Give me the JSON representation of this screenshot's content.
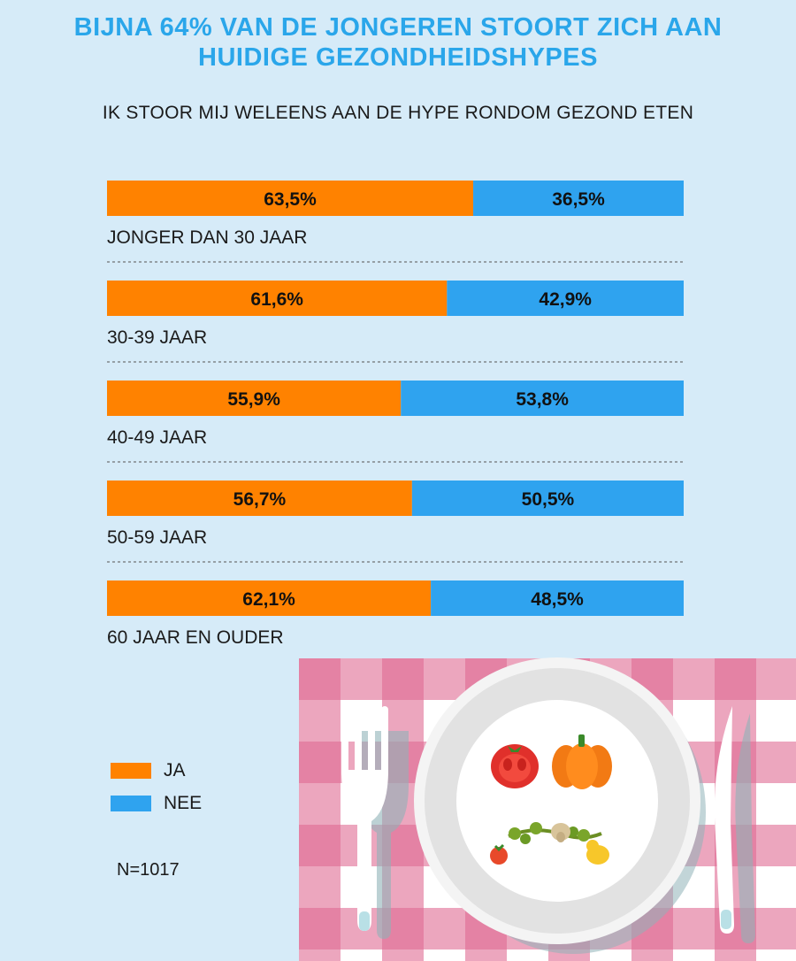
{
  "title_line1": "BIJNA 64% VAN DE JONGEREN STOORT ZICH AAN",
  "title_line2": "HUIDIGE GEZONDHEIDSHYPES",
  "subtitle": "IK STOOR MIJ WELEENS AAN DE HYPE RONDOM GEZOND ETEN",
  "legend": {
    "ja": "JA",
    "nee": "NEE"
  },
  "note": "N=1017",
  "colors": {
    "ja": "#ff8200",
    "nee": "#2fa3ef",
    "background": "#d6ebf8",
    "title": "#2aa6ea"
  },
  "chart_data": {
    "type": "bar",
    "orientation": "horizontal",
    "stacked": true,
    "categories": [
      "JONGER DAN 30 JAAR",
      "30-39 JAAR",
      "40-49 JAAR",
      "50-59 JAAR",
      "60 JAAR EN OUDER"
    ],
    "series": [
      {
        "name": "JA",
        "values": [
          63.5,
          61.6,
          55.9,
          56.7,
          62.1
        ]
      },
      {
        "name": "NEE",
        "values": [
          36.5,
          42.9,
          53.8,
          50.5,
          48.5
        ]
      }
    ],
    "value_labels": {
      "JA": [
        "63,5%",
        "61,6%",
        "55,9%",
        "56,7%",
        "62,1%"
      ],
      "NEE": [
        "36,5%",
        "42,9%",
        "53,8%",
        "50,5%",
        "48,5%"
      ]
    },
    "legend_position": "bottom-left",
    "grid": false
  }
}
